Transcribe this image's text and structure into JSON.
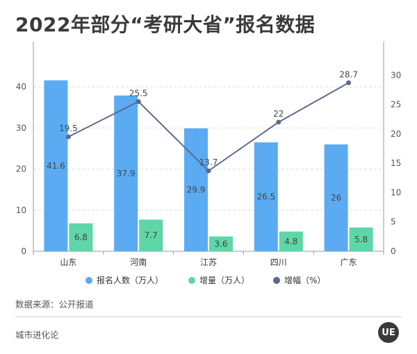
{
  "title": "2022年部分“考研大省”报名数据",
  "source_note": "数据来源：公开报道",
  "brand": "城市进化论",
  "logo_text": "UE",
  "watermark": "城市进化论",
  "colors": {
    "applicants": "#5AABF2",
    "increase": "#5ED6A8",
    "growth": "#5A6A8E",
    "grid": "#dddddd",
    "text": "#555555"
  },
  "chart_data": {
    "type": "bar",
    "categories": [
      "山东",
      "河南",
      "江苏",
      "四川",
      "广东"
    ],
    "series": [
      {
        "name": "报名人数（万人）",
        "type": "bar",
        "axis": "left",
        "values": [
          41.6,
          37.9,
          29.9,
          26.5,
          26
        ]
      },
      {
        "name": "增量（万人）",
        "type": "bar",
        "axis": "left",
        "values": [
          6.8,
          7.7,
          3.6,
          4.8,
          5.8
        ]
      },
      {
        "name": "增幅（%）",
        "type": "line",
        "axis": "right",
        "values": [
          19.5,
          25.5,
          13.7,
          22,
          28.7
        ]
      }
    ],
    "y_left": {
      "min": 0,
      "max": 50,
      "ticks": [
        0,
        10,
        20,
        30,
        40
      ]
    },
    "y_right": {
      "min": 0,
      "max": 35,
      "ticks": [
        0,
        5,
        10,
        15,
        20,
        25,
        30
      ]
    },
    "legend_position": "bottom"
  }
}
